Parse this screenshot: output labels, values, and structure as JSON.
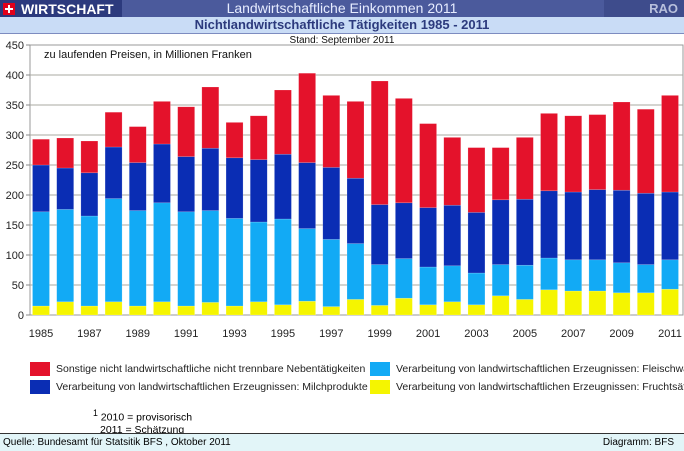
{
  "header": {
    "brand": "WIRTSCHAFT",
    "title": "Landwirtschaftliche Einkommen 2011",
    "right": "RAO"
  },
  "subtitle": "Nichtlandwirtschaftliche Tätigkeiten 1985 - 2011",
  "footer": {
    "source": "Quelle: Bundesamt für Statsitik BFS , Oktober 2011",
    "credit": "Diagramm: BFS"
  },
  "notes": [
    "2010 = provisorisch",
    "2011 = Schätzung"
  ],
  "note_marker": "1",
  "chart_data": {
    "type": "bar",
    "stacked": true,
    "subtitle": "Stand: September 2011",
    "annotation": "zu laufenden Preisen, in Millionen Franken",
    "categories": [
      1985,
      1986,
      1987,
      1988,
      1989,
      1990,
      1991,
      1992,
      1993,
      1994,
      1995,
      1996,
      1997,
      1998,
      1999,
      2000,
      2001,
      2002,
      2003,
      2004,
      2005,
      2006,
      2007,
      2008,
      2009,
      2010,
      2011
    ],
    "x_tick_labels": [
      "1985",
      "1987",
      "1989",
      "1991",
      "1993",
      "1995",
      "1997",
      "1999",
      "2001",
      "2003",
      "2005",
      "2007",
      "2009",
      "2011"
    ],
    "ylim": [
      0,
      450
    ],
    "y_ticks": [
      0,
      50,
      100,
      150,
      200,
      250,
      300,
      350,
      400,
      450
    ],
    "grid": true,
    "legend": "bottom",
    "series": [
      {
        "name": "Verarbeitung von landwirtschaftlichen Erzeugnissen: Fruchtsäfte",
        "color": "#f5f500",
        "values": [
          15,
          22,
          15,
          22,
          15,
          22,
          15,
          21,
          15,
          22,
          17,
          23,
          14,
          26,
          16,
          28,
          17,
          22,
          17,
          32,
          26,
          42,
          40,
          40,
          37,
          37,
          43
        ]
      },
      {
        "name": "Verarbeitung von landwirtschaftlichen Erzeugnissen: Fleischwaren",
        "color": "#12aaf5",
        "values": [
          157,
          154,
          150,
          172,
          159,
          165,
          157,
          153,
          146,
          133,
          143,
          121,
          112,
          93,
          68,
          66,
          63,
          60,
          53,
          52,
          57,
          53,
          52,
          52,
          50,
          47,
          49
        ]
      },
      {
        "name": "Verarbeitung von landwirtschaftlichen Erzeugnissen: Milchprodukte",
        "color": "#0a2db4",
        "values": [
          78,
          69,
          72,
          86,
          80,
          98,
          92,
          104,
          101,
          104,
          108,
          110,
          120,
          109,
          100,
          93,
          99,
          101,
          101,
          108,
          110,
          112,
          113,
          117,
          121,
          119,
          113
        ]
      },
      {
        "name": "Sonstige nicht landwirtschaftliche nicht trennbare Nebentätigkeiten",
        "color": "#e4122b",
        "values": [
          43,
          50,
          53,
          58,
          60,
          71,
          83,
          102,
          59,
          73,
          107,
          149,
          120,
          128,
          206,
          174,
          140,
          113,
          108,
          87,
          103,
          129,
          127,
          125,
          147,
          140,
          161
        ]
      }
    ]
  }
}
